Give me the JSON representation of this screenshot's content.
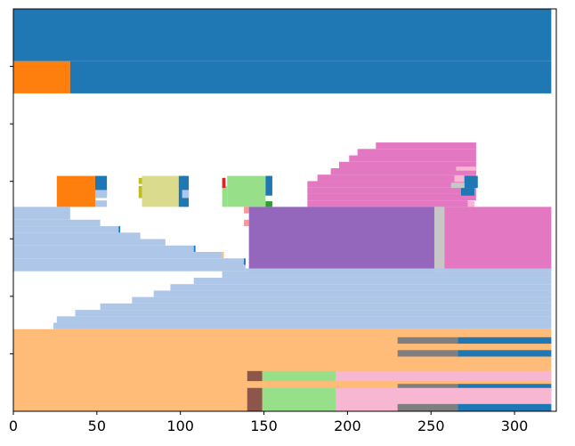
{
  "chart_data": {
    "type": "bar",
    "orientation": "horizontal",
    "title": "",
    "xlabel": "",
    "ylabel": "",
    "xlim": [
      0,
      325
    ],
    "ylim": [
      0,
      1
    ],
    "grid": false,
    "x_ticks": [
      0,
      50,
      100,
      150,
      200,
      250,
      300
    ],
    "x_tick_labels": [
      "0",
      "50",
      "100",
      "150",
      "200",
      "250",
      "300"
    ],
    "y_tick_count": 6,
    "segments": [
      {
        "y0": 0.87,
        "y1": 1.0,
        "x0": 0,
        "x1": 322,
        "color": "#1f77b4"
      },
      {
        "y0": 0.79,
        "y1": 0.87,
        "x0": 0,
        "x1": 34,
        "color": "#ff7f0e"
      },
      {
        "y0": 0.79,
        "y1": 0.87,
        "x0": 34,
        "x1": 322,
        "color": "#1f77b4"
      },
      {
        "y0": 0.652,
        "y1": 0.668,
        "x0": 217,
        "x1": 277,
        "color": "#e377c2"
      },
      {
        "y0": 0.636,
        "y1": 0.652,
        "x0": 206,
        "x1": 277,
        "color": "#e377c2"
      },
      {
        "y0": 0.62,
        "y1": 0.636,
        "x0": 201,
        "x1": 277,
        "color": "#e377c2"
      },
      {
        "y0": 0.604,
        "y1": 0.62,
        "x0": 195,
        "x1": 277,
        "color": "#e377c2"
      },
      {
        "y0": 0.588,
        "y1": 0.604,
        "x0": 190,
        "x1": 277,
        "color": "#e377c2"
      },
      {
        "y0": 0.572,
        "y1": 0.588,
        "x0": 182,
        "x1": 277,
        "color": "#e377c2"
      },
      {
        "y0": 0.556,
        "y1": 0.572,
        "x0": 176,
        "x1": 277,
        "color": "#e377c2"
      },
      {
        "y0": 0.54,
        "y1": 0.556,
        "x0": 176,
        "x1": 277,
        "color": "#e377c2"
      },
      {
        "y0": 0.524,
        "y1": 0.54,
        "x0": 176,
        "x1": 277,
        "color": "#e377c2"
      },
      {
        "y0": 0.508,
        "y1": 0.524,
        "x0": 176,
        "x1": 272,
        "color": "#e377c2"
      },
      {
        "y0": 0.598,
        "y1": 0.608,
        "x0": 265,
        "x1": 277,
        "color": "#f7b6d2"
      },
      {
        "y0": 0.57,
        "y1": 0.586,
        "x0": 264,
        "x1": 270,
        "color": "#f7b6d2"
      },
      {
        "y0": 0.555,
        "y1": 0.585,
        "x0": 270,
        "x1": 278,
        "color": "#1f77b4"
      },
      {
        "y0": 0.555,
        "y1": 0.568,
        "x0": 262,
        "x1": 270,
        "color": "#c7c7c7"
      },
      {
        "y0": 0.536,
        "y1": 0.555,
        "x0": 268,
        "x1": 276,
        "color": "#1f77b4"
      },
      {
        "y0": 0.508,
        "y1": 0.522,
        "x0": 272,
        "x1": 276,
        "color": "#f7b6d2"
      },
      {
        "y0": 0.508,
        "y1": 0.585,
        "x0": 26,
        "x1": 49,
        "color": "#ff7f0e"
      },
      {
        "y0": 0.536,
        "y1": 0.585,
        "x0": 49,
        "x1": 56,
        "color": "#1f77b4"
      },
      {
        "y0": 0.508,
        "y1": 0.524,
        "x0": 49,
        "x1": 56,
        "color": "#aec7e8"
      },
      {
        "y0": 0.53,
        "y1": 0.55,
        "x0": 49,
        "x1": 56,
        "color": "#aec7e8"
      },
      {
        "y0": 0.508,
        "y1": 0.585,
        "x0": 77,
        "x1": 99,
        "color": "#dbdb8d"
      },
      {
        "y0": 0.508,
        "y1": 0.585,
        "x0": 99,
        "x1": 105,
        "color": "#1f77b4"
      },
      {
        "y0": 0.53,
        "y1": 0.55,
        "x0": 101,
        "x1": 105,
        "color": "#aec7e8"
      },
      {
        "y0": 0.53,
        "y1": 0.56,
        "x0": 75,
        "x1": 77,
        "color": "#bcbd22"
      },
      {
        "y0": 0.565,
        "y1": 0.58,
        "x0": 75,
        "x1": 77,
        "color": "#bcbd22"
      },
      {
        "y0": 0.508,
        "y1": 0.585,
        "x0": 128,
        "x1": 151,
        "color": "#98df8a"
      },
      {
        "y0": 0.508,
        "y1": 0.56,
        "x0": 125,
        "x1": 128,
        "color": "#98df8a"
      },
      {
        "y0": 0.536,
        "y1": 0.585,
        "x0": 151,
        "x1": 155,
        "color": "#1f77b4"
      },
      {
        "y0": 0.555,
        "y1": 0.58,
        "x0": 125,
        "x1": 127,
        "color": "#d62728"
      },
      {
        "y0": 0.508,
        "y1": 0.522,
        "x0": 151,
        "x1": 155,
        "color": "#2ca02c"
      },
      {
        "y0": 0.476,
        "y1": 0.508,
        "x0": 0,
        "x1": 34,
        "color": "#aec7e8"
      },
      {
        "y0": 0.46,
        "y1": 0.476,
        "x0": 0,
        "x1": 52,
        "color": "#aec7e8"
      },
      {
        "y0": 0.444,
        "y1": 0.46,
        "x0": 0,
        "x1": 63,
        "color": "#aec7e8"
      },
      {
        "y0": 0.428,
        "y1": 0.444,
        "x0": 0,
        "x1": 76,
        "color": "#aec7e8"
      },
      {
        "y0": 0.412,
        "y1": 0.428,
        "x0": 0,
        "x1": 91,
        "color": "#aec7e8"
      },
      {
        "y0": 0.396,
        "y1": 0.412,
        "x0": 0,
        "x1": 108,
        "color": "#aec7e8"
      },
      {
        "y0": 0.38,
        "y1": 0.396,
        "x0": 0,
        "x1": 125,
        "color": "#aec7e8"
      },
      {
        "y0": 0.364,
        "y1": 0.38,
        "x0": 0,
        "x1": 138,
        "color": "#aec7e8"
      },
      {
        "y0": 0.348,
        "y1": 0.364,
        "x0": 0,
        "x1": 139,
        "color": "#aec7e8"
      },
      {
        "y0": 0.444,
        "y1": 0.46,
        "x0": 63,
        "x1": 64,
        "color": "#1f77b4"
      },
      {
        "y0": 0.396,
        "y1": 0.412,
        "x0": 108,
        "x1": 109,
        "color": "#1f77b4"
      },
      {
        "y0": 0.38,
        "y1": 0.396,
        "x0": 125,
        "x1": 126,
        "color": "#ffbb78"
      },
      {
        "y0": 0.364,
        "y1": 0.38,
        "x0": 138,
        "x1": 139,
        "color": "#1f77b4"
      },
      {
        "y0": 0.492,
        "y1": 0.508,
        "x0": 138,
        "x1": 141,
        "color": "#ff9896"
      },
      {
        "y0": 0.46,
        "y1": 0.476,
        "x0": 138,
        "x1": 141,
        "color": "#ff9896"
      },
      {
        "y0": 0.348,
        "y1": 0.508,
        "x0": 141,
        "x1": 252,
        "color": "#9467bd"
      },
      {
        "y0": 0.348,
        "y1": 0.508,
        "x0": 252,
        "x1": 258,
        "color": "#c7c7c7"
      },
      {
        "y0": 0.348,
        "y1": 0.508,
        "x0": 258,
        "x1": 322,
        "color": "#e377c2"
      },
      {
        "y0": 0.348,
        "y1": 0.355,
        "x0": 139,
        "x1": 322,
        "color": "#aec7e8"
      },
      {
        "y0": 0.332,
        "y1": 0.348,
        "x0": 125,
        "x1": 322,
        "color": "#aec7e8"
      },
      {
        "y0": 0.316,
        "y1": 0.332,
        "x0": 108,
        "x1": 322,
        "color": "#aec7e8"
      },
      {
        "y0": 0.3,
        "y1": 0.316,
        "x0": 94,
        "x1": 322,
        "color": "#aec7e8"
      },
      {
        "y0": 0.284,
        "y1": 0.3,
        "x0": 84,
        "x1": 322,
        "color": "#aec7e8"
      },
      {
        "y0": 0.268,
        "y1": 0.284,
        "x0": 71,
        "x1": 322,
        "color": "#aec7e8"
      },
      {
        "y0": 0.252,
        "y1": 0.268,
        "x0": 52,
        "x1": 322,
        "color": "#aec7e8"
      },
      {
        "y0": 0.236,
        "y1": 0.252,
        "x0": 37,
        "x1": 322,
        "color": "#aec7e8"
      },
      {
        "y0": 0.22,
        "y1": 0.236,
        "x0": 26,
        "x1": 322,
        "color": "#aec7e8"
      },
      {
        "y0": 0.204,
        "y1": 0.22,
        "x0": 24,
        "x1": 322,
        "color": "#aec7e8"
      },
      {
        "y0": 0.0,
        "y1": 0.204,
        "x0": 0,
        "x1": 322,
        "color": "#ffbb78"
      },
      {
        "y0": 0.168,
        "y1": 0.184,
        "x0": 230,
        "x1": 266,
        "color": "#7f7f7f"
      },
      {
        "y0": 0.168,
        "y1": 0.184,
        "x0": 266,
        "x1": 322,
        "color": "#1f77b4"
      },
      {
        "y0": 0.136,
        "y1": 0.152,
        "x0": 230,
        "x1": 266,
        "color": "#7f7f7f"
      },
      {
        "y0": 0.136,
        "y1": 0.152,
        "x0": 266,
        "x1": 322,
        "color": "#1f77b4"
      },
      {
        "y0": 0.075,
        "y1": 0.1,
        "x0": 140,
        "x1": 149,
        "color": "#8c564b"
      },
      {
        "y0": 0.075,
        "y1": 0.1,
        "x0": 149,
        "x1": 193,
        "color": "#98df8a"
      },
      {
        "y0": 0.075,
        "y1": 0.1,
        "x0": 193,
        "x1": 322,
        "color": "#f7b6d2"
      },
      {
        "y0": 0.05,
        "y1": 0.068,
        "x0": 230,
        "x1": 266,
        "color": "#7f7f7f"
      },
      {
        "y0": 0.05,
        "y1": 0.068,
        "x0": 266,
        "x1": 322,
        "color": "#1f77b4"
      },
      {
        "y0": 0.0,
        "y1": 0.058,
        "x0": 140,
        "x1": 149,
        "color": "#8c564b"
      },
      {
        "y0": 0.0,
        "y1": 0.058,
        "x0": 149,
        "x1": 193,
        "color": "#98df8a"
      },
      {
        "y0": 0.0,
        "y1": 0.058,
        "x0": 193,
        "x1": 322,
        "color": "#f7b6d2"
      },
      {
        "y0": 0.0,
        "y1": 0.018,
        "x0": 230,
        "x1": 266,
        "color": "#7f7f7f"
      },
      {
        "y0": 0.0,
        "y1": 0.018,
        "x0": 266,
        "x1": 322,
        "color": "#1f77b4"
      }
    ]
  }
}
